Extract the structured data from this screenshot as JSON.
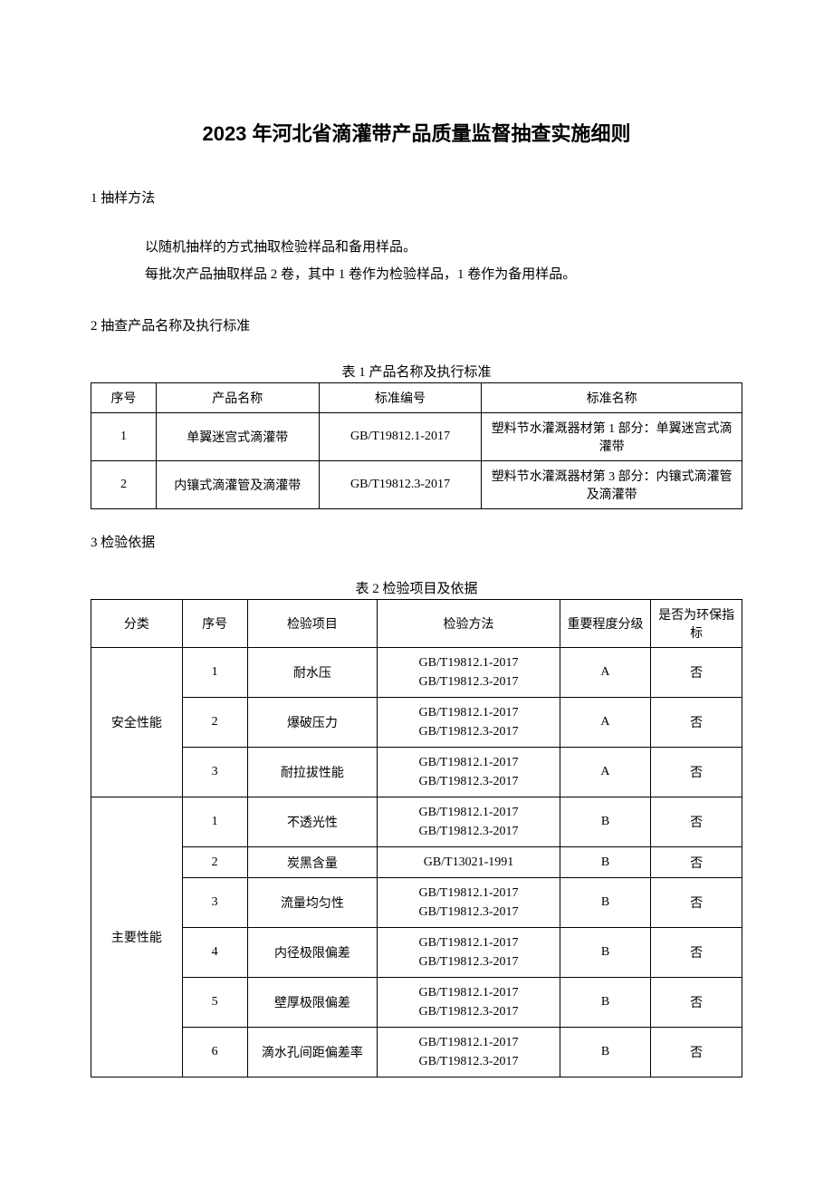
{
  "title": "2023 年河北省滴灌带产品质量监督抽查实施细则",
  "section1": {
    "heading": "1 抽样方法",
    "p1": "以随机抽样的方式抽取检验样品和备用样品。",
    "p2": "每批次产品抽取样品 2 卷，其中 1 卷作为检验样品，1 卷作为备用样品。"
  },
  "section2": {
    "heading": "2 抽查产品名称及执行标准"
  },
  "table1": {
    "caption": "表 1 产品名称及执行标准",
    "headers": {
      "c1": "序号",
      "c2": "产品名称",
      "c3": "标准编号",
      "c4": "标准名称"
    },
    "rows": [
      {
        "c1": "1",
        "c2": "单翼迷宫式滴灌带",
        "c3": "GB/T19812.1-2017",
        "c4": "塑料节水灌溉器材第 1 部分：单翼迷宫式滴灌带"
      },
      {
        "c1": "2",
        "c2": "内镶式滴灌管及滴灌带",
        "c3": "GB/T19812.3-2017",
        "c4": "塑料节水灌溉器材第 3 部分：内镶式滴灌管及滴灌带"
      }
    ]
  },
  "section3": {
    "heading": "3 检验依据"
  },
  "table2": {
    "caption": "表 2 检验项目及依据",
    "headers": {
      "c1": "分类",
      "c2": "序号",
      "c3": "检验项目",
      "c4": "检验方法",
      "c5": "重要程度分级",
      "c6": "是否为环保指标"
    },
    "groups": [
      {
        "category": "安全性能",
        "rows": [
          {
            "seq": "1",
            "item": "耐水压",
            "method_a": "GB/T19812.1-2017",
            "method_b": "GB/T19812.3-2017",
            "level": "A",
            "env": "否"
          },
          {
            "seq": "2",
            "item": "爆破压力",
            "method_a": "GB/T19812.1-2017",
            "method_b": "GB/T19812.3-2017",
            "level": "A",
            "env": "否"
          },
          {
            "seq": "3",
            "item": "耐拉拔性能",
            "method_a": "GB/T19812.1-2017",
            "method_b": "GB/T19812.3-2017",
            "level": "A",
            "env": "否"
          }
        ]
      },
      {
        "category": "主要性能",
        "rows": [
          {
            "seq": "1",
            "item": "不透光性",
            "method_a": "GB/T19812.1-2017",
            "method_b": "GB/T19812.3-2017",
            "level": "B",
            "env": "否"
          },
          {
            "seq": "2",
            "item": "炭黑含量",
            "method_a": "GB/T13021-1991",
            "method_b": "",
            "level": "B",
            "env": "否"
          },
          {
            "seq": "3",
            "item": "流量均匀性",
            "method_a": "GB/T19812.1-2017",
            "method_b": "GB/T19812.3-2017",
            "level": "B",
            "env": "否"
          },
          {
            "seq": "4",
            "item": "内径极限偏差",
            "method_a": "GB/T19812.1-2017",
            "method_b": "GB/T19812.3-2017",
            "level": "B",
            "env": "否"
          },
          {
            "seq": "5",
            "item": "壁厚极限偏差",
            "method_a": "GB/T19812.1-2017",
            "method_b": "GB/T19812.3-2017",
            "level": "B",
            "env": "否"
          },
          {
            "seq": "6",
            "item": "滴水孔间距偏差率",
            "method_a": "GB/T19812.1-2017",
            "method_b": "GB/T19812.3-2017",
            "level": "B",
            "env": "否"
          }
        ]
      }
    ]
  }
}
